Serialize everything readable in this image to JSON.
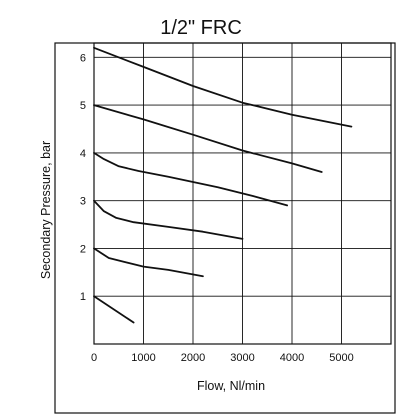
{
  "chart_data": {
    "type": "line",
    "title": "1/2\" FRC",
    "xlabel": "Flow, Nl/min",
    "ylabel": "Secondary Pressure, bar",
    "xlim": [
      0,
      6000
    ],
    "ylim": [
      0,
      6.3
    ],
    "x_ticks": [
      0,
      1000,
      2000,
      3000,
      4000,
      5000
    ],
    "y_ticks": [
      1,
      2,
      3,
      4,
      5,
      6
    ],
    "grid": true,
    "legend": "none",
    "series": [
      {
        "x": [
          0,
          800
        ],
        "y": [
          1.0,
          0.45
        ]
      },
      {
        "x": [
          0,
          300,
          600,
          1000,
          1500,
          2200
        ],
        "y": [
          2.0,
          1.8,
          1.72,
          1.62,
          1.55,
          1.42
        ]
      },
      {
        "x": [
          0,
          200,
          450,
          800,
          1500,
          2200,
          3000
        ],
        "y": [
          3.0,
          2.78,
          2.64,
          2.55,
          2.45,
          2.35,
          2.2
        ]
      },
      {
        "x": [
          0,
          200,
          500,
          900,
          1500,
          2500,
          3200,
          3900
        ],
        "y": [
          4.0,
          3.87,
          3.72,
          3.62,
          3.5,
          3.28,
          3.1,
          2.9
        ]
      },
      {
        "x": [
          0,
          1000,
          2000,
          3000,
          4000,
          4600
        ],
        "y": [
          5.0,
          4.7,
          4.38,
          4.05,
          3.78,
          3.6
        ]
      },
      {
        "x": [
          0,
          1000,
          2000,
          3000,
          4000,
          5200
        ],
        "y": [
          6.2,
          5.8,
          5.4,
          5.05,
          4.8,
          4.55
        ]
      }
    ],
    "colors": {
      "line": "#111111",
      "grid": "#111111",
      "frame": "#111111"
    }
  }
}
